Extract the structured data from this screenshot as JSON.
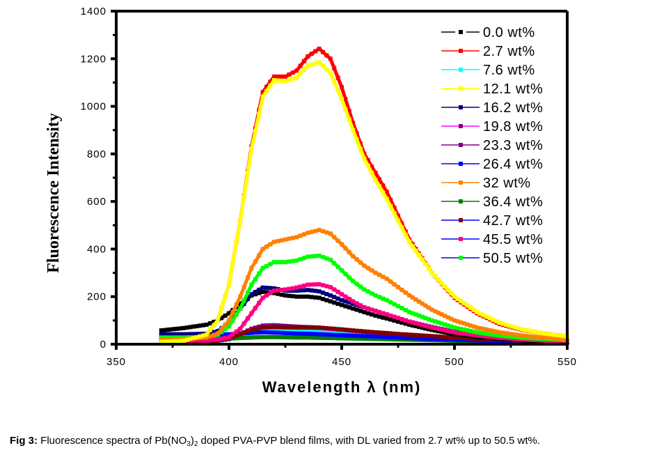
{
  "chart_data": {
    "type": "line",
    "title": "",
    "xlabel": "Wavelength λ (nm)",
    "ylabel": "Fluorescence Intensity",
    "xlim": [
      350,
      550
    ],
    "ylim": [
      0,
      1400
    ],
    "xticks": [
      350,
      400,
      450,
      500,
      550
    ],
    "yticks": [
      0,
      200,
      400,
      600,
      800,
      1000,
      1200,
      1400
    ],
    "grid": false,
    "legend_position": "top-right",
    "x": [
      370,
      380,
      390,
      395,
      400,
      405,
      410,
      415,
      420,
      425,
      430,
      435,
      440,
      445,
      450,
      455,
      460,
      465,
      470,
      475,
      480,
      490,
      500,
      510,
      520,
      530,
      540,
      550
    ],
    "series": [
      {
        "name": "0.0 wt%",
        "color": "#000000",
        "values": [
          58,
          68,
          82,
          100,
          130,
          170,
          205,
          220,
          215,
          205,
          200,
          200,
          195,
          180,
          165,
          150,
          135,
          120,
          108,
          95,
          82,
          60,
          42,
          30,
          22,
          16,
          12,
          9
        ]
      },
      {
        "name": "2.7 wt%",
        "color": "#ff0000",
        "values": [
          10,
          15,
          40,
          100,
          250,
          520,
          830,
          1060,
          1125,
          1125,
          1150,
          1210,
          1242,
          1200,
          1080,
          930,
          800,
          720,
          640,
          540,
          440,
          300,
          195,
          130,
          85,
          60,
          45,
          32
        ]
      },
      {
        "name": "7.6 wt%",
        "color": "#00ffff",
        "values": [
          10,
          10,
          12,
          15,
          20,
          30,
          45,
          55,
          58,
          57,
          55,
          53,
          50,
          47,
          44,
          41,
          38,
          35,
          32,
          29,
          26,
          21,
          17,
          14,
          11,
          9,
          8,
          7
        ]
      },
      {
        "name": "12.1 wt%",
        "color": "#ffff00",
        "values": [
          10,
          15,
          40,
          100,
          250,
          520,
          820,
          1040,
          1110,
          1105,
          1120,
          1170,
          1185,
          1140,
          1030,
          900,
          780,
          690,
          610,
          520,
          430,
          300,
          200,
          135,
          90,
          62,
          45,
          32
        ]
      },
      {
        "name": "16.2 wt%",
        "color": "#000080",
        "values": [
          42,
          42,
          44,
          55,
          90,
          150,
          210,
          238,
          235,
          225,
          225,
          228,
          222,
          205,
          185,
          170,
          155,
          140,
          125,
          110,
          95,
          72,
          52,
          38,
          28,
          20,
          15,
          12
        ]
      },
      {
        "name": "19.8 wt%",
        "color": "#ff00ff",
        "values": [
          10,
          10,
          12,
          15,
          22,
          40,
          62,
          76,
          78,
          75,
          72,
          70,
          68,
          64,
          60,
          56,
          52,
          48,
          44,
          40,
          36,
          30,
          24,
          19,
          15,
          12,
          10,
          8
        ]
      },
      {
        "name": "23.3 wt%",
        "color": "#800080",
        "values": [
          10,
          10,
          12,
          15,
          22,
          42,
          65,
          78,
          80,
          77,
          74,
          72,
          70,
          66,
          62,
          57,
          53,
          49,
          45,
          41,
          37,
          30,
          24,
          19,
          15,
          12,
          10,
          8
        ]
      },
      {
        "name": "26.4 wt%",
        "color": "#0000ff",
        "values": [
          38,
          38,
          38,
          40,
          42,
          45,
          48,
          50,
          49,
          47,
          45,
          44,
          42,
          40,
          38,
          36,
          34,
          32,
          30,
          28,
          26,
          22,
          19,
          16,
          14,
          12,
          10,
          9
        ]
      },
      {
        "name": "32 wt%",
        "color": "#ff8000",
        "values": [
          20,
          22,
          28,
          45,
          100,
          200,
          320,
          400,
          430,
          440,
          450,
          468,
          480,
          465,
          420,
          370,
          330,
          300,
          275,
          240,
          205,
          145,
          100,
          70,
          50,
          36,
          27,
          20
        ]
      },
      {
        "name": "36.4 wt%",
        "color": "#008000",
        "values": [
          22,
          22,
          22,
          23,
          24,
          26,
          28,
          30,
          30,
          29,
          28,
          28,
          27,
          26,
          25,
          24,
          23,
          22,
          21,
          20,
          19,
          17,
          15,
          13,
          12,
          10,
          9,
          8
        ]
      },
      {
        "name": "42.7 wt%",
        "color": "#800000",
        "values": [
          10,
          10,
          12,
          15,
          25,
          42,
          60,
          70,
          72,
          71,
          70,
          70,
          69,
          66,
          62,
          58,
          54,
          50,
          47,
          43,
          40,
          34,
          28,
          23,
          19,
          15,
          12,
          10
        ]
      },
      {
        "name": "45.5 wt%",
        "color": "#ff0080",
        "values": [
          15,
          15,
          16,
          20,
          30,
          65,
          130,
          195,
          225,
          230,
          238,
          250,
          252,
          240,
          210,
          180,
          155,
          140,
          125,
          110,
          95,
          70,
          50,
          37,
          27,
          20,
          15,
          12
        ]
      },
      {
        "name": "50.5 wt%",
        "color": "#00ff00",
        "values": [
          28,
          28,
          30,
          40,
          75,
          150,
          250,
          320,
          345,
          345,
          352,
          368,
          372,
          355,
          310,
          265,
          230,
          205,
          185,
          160,
          135,
          100,
          70,
          50,
          36,
          27,
          22,
          18
        ]
      }
    ]
  },
  "legend": {
    "items": [
      "0.0 wt%",
      "2.7 wt%",
      "7.6 wt%",
      "12.1 wt%",
      "16.2 wt%",
      "19.8 wt%",
      "23.3 wt%",
      "26.4 wt%",
      "32 wt%",
      "36.4 wt%",
      "42.7 wt%",
      "45.5 wt%",
      "50.5 wt%"
    ],
    "line_colors": [
      "#000000",
      "#ff0000",
      "#00ffff",
      "#ffff00",
      "#000080",
      "#ff00ff",
      "#800080",
      "#0000ff",
      "#ff8000",
      "#008000",
      "#0000ff",
      "#0000ff",
      "#0000ff"
    ],
    "marker_colors": [
      "#000000",
      "#ff0000",
      "#00ffff",
      "#ffff00",
      "#000080",
      "#800080",
      "#800080",
      "#0000ff",
      "#ff8000",
      "#008000",
      "#800000",
      "#ff0080",
      "#00ff00"
    ]
  },
  "caption": {
    "label": "Fig 3:",
    "text_before": " Fluorescence spectra of Pb(NO",
    "sub1": "3",
    "mid": ")",
    "sub2": "2",
    "text_after": " doped PVA-PVP blend films, with DL varied from 2.7 wt% up to 50.5 wt%."
  }
}
